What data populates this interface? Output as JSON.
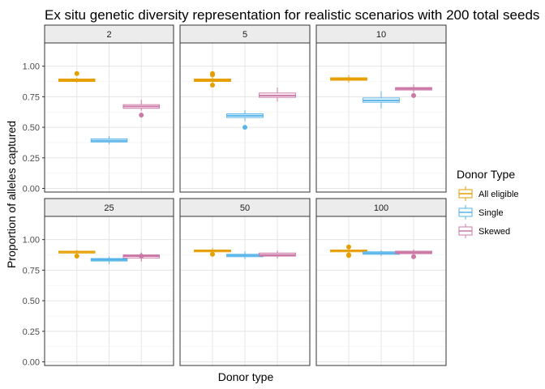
{
  "chart_data": {
    "type": "boxplot",
    "title": "Ex situ genetic diversity representation for realistic scenarios with 200 total seeds",
    "xlabel": "Donor type",
    "ylabel": "Proportion of alleles captured",
    "ylim": [
      -0.03,
      1.19
    ],
    "yticks": [
      0.0,
      0.25,
      0.5,
      0.75,
      1.0
    ],
    "ytick_labels": [
      "0.00",
      "0.25",
      "0.50",
      "0.75",
      "1.00"
    ],
    "grid": true,
    "legend": {
      "title": "Donor Type",
      "placement": "right",
      "entries": [
        "All eligible",
        "Single",
        "Skewed"
      ]
    },
    "series_colors": {
      "All eligible": "#E69F00",
      "Single": "#56B4E9",
      "Skewed": "#CC79A7"
    },
    "facets": [
      {
        "label": "2",
        "boxes": [
          {
            "series": "All eligible",
            "q1": 0.875,
            "median": 0.885,
            "q3": 0.895,
            "whisker_low": 0.865,
            "whisker_high": 0.905,
            "outliers": [
              0.94
            ]
          },
          {
            "series": "Single",
            "q1": 0.38,
            "median": 0.39,
            "q3": 0.405,
            "whisker_low": 0.36,
            "whisker_high": 0.425,
            "outliers": []
          },
          {
            "series": "Skewed",
            "q1": 0.655,
            "median": 0.67,
            "q3": 0.685,
            "whisker_low": 0.635,
            "whisker_high": 0.725,
            "outliers": [
              0.6
            ]
          }
        ]
      },
      {
        "label": "5",
        "boxes": [
          {
            "series": "All eligible",
            "q1": 0.875,
            "median": 0.885,
            "q3": 0.895,
            "whisker_low": 0.865,
            "whisker_high": 0.91,
            "outliers": [
              0.94,
              0.93,
              0.845
            ]
          },
          {
            "series": "Single",
            "q1": 0.58,
            "median": 0.595,
            "q3": 0.61,
            "whisker_low": 0.55,
            "whisker_high": 0.64,
            "outliers": [
              0.5
            ]
          },
          {
            "series": "Skewed",
            "q1": 0.745,
            "median": 0.76,
            "q3": 0.78,
            "whisker_low": 0.71,
            "whisker_high": 0.825,
            "outliers": []
          }
        ]
      },
      {
        "label": "10",
        "boxes": [
          {
            "series": "All eligible",
            "q1": 0.885,
            "median": 0.895,
            "q3": 0.905,
            "whisker_low": 0.865,
            "whisker_high": 0.925,
            "outliers": []
          },
          {
            "series": "Single",
            "q1": 0.705,
            "median": 0.72,
            "q3": 0.74,
            "whisker_low": 0.655,
            "whisker_high": 0.795,
            "outliers": []
          },
          {
            "series": "Skewed",
            "q1": 0.805,
            "median": 0.815,
            "q3": 0.825,
            "whisker_low": 0.785,
            "whisker_high": 0.85,
            "outliers": [
              0.76
            ]
          }
        ]
      },
      {
        "label": "25",
        "boxes": [
          {
            "series": "All eligible",
            "q1": 0.89,
            "median": 0.9,
            "q3": 0.905,
            "whisker_low": 0.88,
            "whisker_high": 0.915,
            "outliers": [
              0.865
            ]
          },
          {
            "series": "Single",
            "q1": 0.825,
            "median": 0.835,
            "q3": 0.845,
            "whisker_low": 0.8,
            "whisker_high": 0.86,
            "outliers": []
          },
          {
            "series": "Skewed",
            "q1": 0.85,
            "median": 0.865,
            "q3": 0.875,
            "whisker_low": 0.82,
            "whisker_high": 0.895,
            "outliers": [
              0.865
            ]
          }
        ]
      },
      {
        "label": "50",
        "boxes": [
          {
            "series": "All eligible",
            "q1": 0.9,
            "median": 0.91,
            "q3": 0.915,
            "whisker_low": 0.89,
            "whisker_high": 0.93,
            "outliers": [
              0.88
            ]
          },
          {
            "series": "Single",
            "q1": 0.86,
            "median": 0.87,
            "q3": 0.88,
            "whisker_low": 0.84,
            "whisker_high": 0.905,
            "outliers": []
          },
          {
            "series": "Skewed",
            "q1": 0.865,
            "median": 0.875,
            "q3": 0.89,
            "whisker_low": 0.845,
            "whisker_high": 0.91,
            "outliers": []
          }
        ]
      },
      {
        "label": "100",
        "boxes": [
          {
            "series": "All eligible",
            "q1": 0.9,
            "median": 0.91,
            "q3": 0.915,
            "whisker_low": 0.89,
            "whisker_high": 0.93,
            "outliers": [
              0.94,
              0.875,
              0.87
            ]
          },
          {
            "series": "Single",
            "q1": 0.88,
            "median": 0.89,
            "q3": 0.9,
            "whisker_low": 0.865,
            "whisker_high": 0.915,
            "outliers": []
          },
          {
            "series": "Skewed",
            "q1": 0.885,
            "median": 0.895,
            "q3": 0.905,
            "whisker_low": 0.87,
            "whisker_high": 0.92,
            "outliers": [
              0.86
            ]
          }
        ]
      }
    ]
  }
}
